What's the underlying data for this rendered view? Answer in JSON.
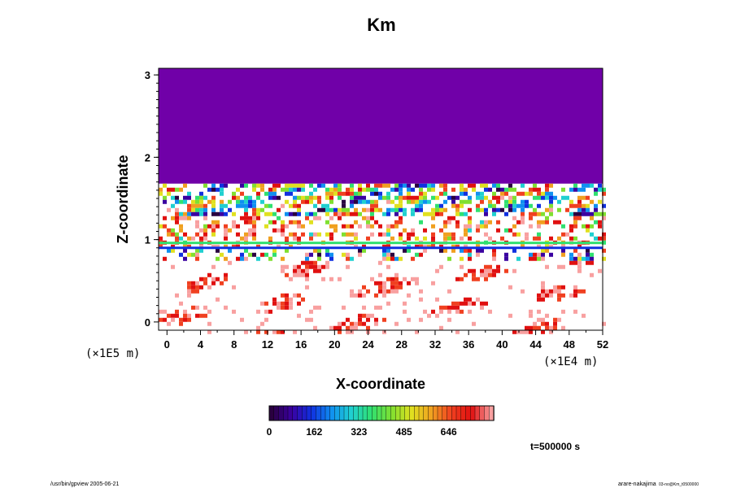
{
  "chart_data": {
    "type": "heatmap",
    "title": "Km",
    "xlabel": "X-coordinate",
    "ylabel": "Z-coordinate",
    "x_scale_note": "(×1E4 m)",
    "y_scale_note": "(×1E5 m)",
    "xlim": [
      -1,
      52
    ],
    "ylim": [
      -0.1,
      3.08
    ],
    "x_ticks": [
      "0",
      "4",
      "8",
      "12",
      "16",
      "20",
      "24",
      "28",
      "32",
      "36",
      "40",
      "44",
      "48",
      "52"
    ],
    "y_ticks": [
      "0",
      "1",
      "2",
      "3"
    ],
    "x_tick_values": [
      0,
      4,
      8,
      12,
      16,
      20,
      24,
      28,
      32,
      36,
      40,
      44,
      48,
      52
    ],
    "y_tick_values": [
      0,
      1,
      2,
      3
    ],
    "colorbar": {
      "min": 0,
      "max": 808,
      "ticks": [
        "0",
        "162",
        "323",
        "485",
        "646"
      ],
      "tick_values": [
        0,
        162,
        323,
        485,
        646
      ],
      "colors": [
        "#2a0040",
        "#3a00a0",
        "#1030e0",
        "#1090f0",
        "#20d0d0",
        "#30e070",
        "#80e030",
        "#e0e020",
        "#f0a020",
        "#f04020",
        "#e01010",
        "#f8a0a0"
      ]
    },
    "regions": {
      "uniform_top_value": 40,
      "uniform_top_from_z": 1.68,
      "uniform_top_color": "#7000a8"
    },
    "time_label": "t=500000 s"
  },
  "footer": {
    "left": "/usr/bin/gpview 2005-06-21",
    "right_main": "arare-nakajima",
    "right_sub": "03-no@Km_t0500000"
  }
}
